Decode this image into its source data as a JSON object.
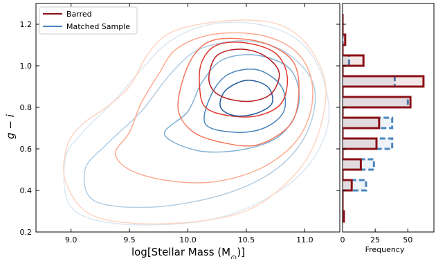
{
  "chart_data": [
    {
      "type": "contour",
      "xlabel": "log[Stellar Mass (M",
      "xlabel_sub": "⊙",
      "xlabel_end": ")]",
      "ylabel": "g − i",
      "xlim": [
        8.7,
        11.3
      ],
      "ylim": [
        0.2,
        1.3
      ],
      "xticks": [
        "9.0",
        "9.5",
        "10.0",
        "10.5",
        "11.0"
      ],
      "yticks": [
        "0.2",
        "0.4",
        "0.6",
        "0.8",
        "1.0",
        "1.2"
      ],
      "legend": {
        "position": "top-left",
        "entries": [
          {
            "label": "Barred",
            "color": "#8b0f16"
          },
          {
            "label": "Matched Sample",
            "color": "#4a86bf"
          }
        ]
      },
      "series": [
        {
          "name": "Barred",
          "levels": [
            {
              "color": "#fdd5c2",
              "points": [
                [
                  8.97,
                  0.62
                ],
                [
                  9.1,
                  0.72
                ],
                [
                  9.3,
                  0.8
                ],
                [
                  9.5,
                  0.9
                ],
                [
                  9.65,
                  1.05
                ],
                [
                  9.82,
                  1.15
                ],
                [
                  10.1,
                  1.2
                ],
                [
                  10.5,
                  1.22
                ],
                [
                  10.82,
                  1.19
                ],
                [
                  11.05,
                  1.08
                ],
                [
                  11.18,
                  0.9
                ],
                [
                  11.12,
                  0.68
                ],
                [
                  10.95,
                  0.5
                ],
                [
                  10.6,
                  0.33
                ],
                [
                  10.2,
                  0.26
                ],
                [
                  9.6,
                  0.24
                ],
                [
                  9.15,
                  0.29
                ],
                [
                  8.95,
                  0.45
                ],
                [
                  8.97,
                  0.62
                ]
              ]
            },
            {
              "color": "#fcab8f",
              "points": [
                [
                  9.38,
                  0.58
                ],
                [
                  9.5,
                  0.68
                ],
                [
                  9.6,
                  0.82
                ],
                [
                  9.75,
                  0.96
                ],
                [
                  9.9,
                  1.08
                ],
                [
                  10.2,
                  1.15
                ],
                [
                  10.6,
                  1.15
                ],
                [
                  10.9,
                  1.08
                ],
                [
                  11.05,
                  0.95
                ],
                [
                  11.05,
                  0.78
                ],
                [
                  10.9,
                  0.62
                ],
                [
                  10.6,
                  0.5
                ],
                [
                  10.2,
                  0.44
                ],
                [
                  9.8,
                  0.45
                ],
                [
                  9.5,
                  0.5
                ],
                [
                  9.38,
                  0.58
                ]
              ]
            },
            {
              "color": "#f4775c",
              "points": [
                [
                  9.92,
                  0.78
                ],
                [
                  9.95,
                  0.92
                ],
                [
                  10.05,
                  1.05
                ],
                [
                  10.2,
                  1.12
                ],
                [
                  10.45,
                  1.13
                ],
                [
                  10.7,
                  1.1
                ],
                [
                  10.9,
                  1.02
                ],
                [
                  10.95,
                  0.88
                ],
                [
                  10.88,
                  0.72
                ],
                [
                  10.6,
                  0.62
                ],
                [
                  10.3,
                  0.63
                ],
                [
                  10.05,
                  0.68
                ],
                [
                  9.92,
                  0.78
                ]
              ]
            },
            {
              "color": "#e03a2f",
              "points": [
                [
                  10.1,
                  0.9
                ],
                [
                  10.12,
                  1.02
                ],
                [
                  10.25,
                  1.1
                ],
                [
                  10.5,
                  1.11
                ],
                [
                  10.75,
                  1.06
                ],
                [
                  10.85,
                  0.95
                ],
                [
                  10.8,
                  0.82
                ],
                [
                  10.6,
                  0.76
                ],
                [
                  10.35,
                  0.76
                ],
                [
                  10.15,
                  0.8
                ],
                [
                  10.1,
                  0.9
                ]
              ]
            },
            {
              "color": "#b51b21",
              "points": [
                [
                  10.18,
                  0.95
                ],
                [
                  10.25,
                  1.05
                ],
                [
                  10.45,
                  1.08
                ],
                [
                  10.65,
                  1.05
                ],
                [
                  10.78,
                  0.97
                ],
                [
                  10.72,
                  0.87
                ],
                [
                  10.55,
                  0.83
                ],
                [
                  10.35,
                  0.84
                ],
                [
                  10.22,
                  0.88
                ],
                [
                  10.18,
                  0.95
                ]
              ]
            }
          ],
          "histogram": {
            "bins": [
              0.25,
              0.3,
              0.35,
              0.4,
              0.45,
              0.5,
              0.55,
              0.6,
              0.65,
              0.7,
              0.75,
              0.8,
              0.85,
              0.9,
              0.95,
              1.0,
              1.05,
              1.1,
              1.15,
              1.2,
              1.25
            ],
            "counts": [
              1,
              0,
              0,
              7,
              0,
              14,
              0,
              26,
              0,
              28,
              0,
              52,
              0,
              62,
              0,
              16,
              0,
              2,
              0,
              0
            ],
            "color": "#8b0f16"
          }
        },
        {
          "name": "Matched Sample",
          "levels": [
            {
              "color": "#dbe7f2",
              "points": [
                [
                  8.95,
                  0.55
                ],
                [
                  9.1,
                  0.68
                ],
                [
                  9.35,
                  0.82
                ],
                [
                  9.6,
                  0.98
                ],
                [
                  9.85,
                  1.12
                ],
                [
                  10.2,
                  1.2
                ],
                [
                  10.6,
                  1.2
                ],
                [
                  10.95,
                  1.12
                ],
                [
                  11.15,
                  0.95
                ],
                [
                  11.2,
                  0.72
                ],
                [
                  11.0,
                  0.5
                ],
                [
                  10.6,
                  0.34
                ],
                [
                  10.1,
                  0.25
                ],
                [
                  9.4,
                  0.24
                ],
                [
                  9.0,
                  0.32
                ],
                [
                  8.95,
                  0.55
                ]
              ]
            },
            {
              "color": "#b2cde3",
              "points": [
                [
                  9.12,
                  0.5
                ],
                [
                  9.3,
                  0.62
                ],
                [
                  9.6,
                  0.78
                ],
                [
                  9.85,
                  0.96
                ],
                [
                  10.1,
                  1.08
                ],
                [
                  10.5,
                  1.12
                ],
                [
                  10.85,
                  1.06
                ],
                [
                  11.08,
                  0.9
                ],
                [
                  11.02,
                  0.68
                ],
                [
                  10.75,
                  0.5
                ],
                [
                  10.3,
                  0.38
                ],
                [
                  9.7,
                  0.32
                ],
                [
                  9.2,
                  0.35
                ],
                [
                  9.12,
                  0.5
                ]
              ]
            },
            {
              "color": "#7fb0d6",
              "points": [
                [
                  9.8,
                  0.67
                ],
                [
                  10.0,
                  0.78
                ],
                [
                  10.12,
                  0.92
                ],
                [
                  10.3,
                  1.03
                ],
                [
                  10.6,
                  1.05
                ],
                [
                  10.88,
                  0.98
                ],
                [
                  10.95,
                  0.82
                ],
                [
                  10.8,
                  0.67
                ],
                [
                  10.5,
                  0.6
                ],
                [
                  10.1,
                  0.59
                ],
                [
                  9.8,
                  0.67
                ]
              ]
            },
            {
              "color": "#4a86bf",
              "points": [
                [
                  10.15,
                  0.72
                ],
                [
                  10.2,
                  0.86
                ],
                [
                  10.35,
                  0.96
                ],
                [
                  10.6,
                  0.98
                ],
                [
                  10.8,
                  0.9
                ],
                [
                  10.82,
                  0.78
                ],
                [
                  10.65,
                  0.7
                ],
                [
                  10.4,
                  0.68
                ],
                [
                  10.15,
                  0.72
                ]
              ]
            },
            {
              "color": "#1f5a9e",
              "points": [
                [
                  10.28,
                  0.8
                ],
                [
                  10.32,
                  0.88
                ],
                [
                  10.5,
                  0.93
                ],
                [
                  10.68,
                  0.9
                ],
                [
                  10.72,
                  0.82
                ],
                [
                  10.58,
                  0.77
                ],
                [
                  10.4,
                  0.76
                ],
                [
                  10.28,
                  0.8
                ]
              ]
            }
          ],
          "histogram": {
            "bins": [
              0.25,
              0.3,
              0.35,
              0.4,
              0.45,
              0.5,
              0.55,
              0.6,
              0.65,
              0.7,
              0.75,
              0.8,
              0.85,
              0.9,
              0.95,
              1.0,
              1.05,
              1.1,
              1.15,
              1.2,
              1.25
            ],
            "counts": [
              0,
              0,
              0,
              18,
              0,
              24,
              0,
              38,
              0,
              38,
              0,
              50,
              0,
              40,
              0,
              5,
              0,
              0,
              0,
              0
            ],
            "color": "#4a86bf"
          }
        }
      ]
    },
    {
      "type": "histogram",
      "orientation": "horizontal",
      "xlabel": "Frequency",
      "xlim": [
        0,
        70
      ],
      "xticks": [
        "0",
        "25",
        "50"
      ]
    }
  ]
}
